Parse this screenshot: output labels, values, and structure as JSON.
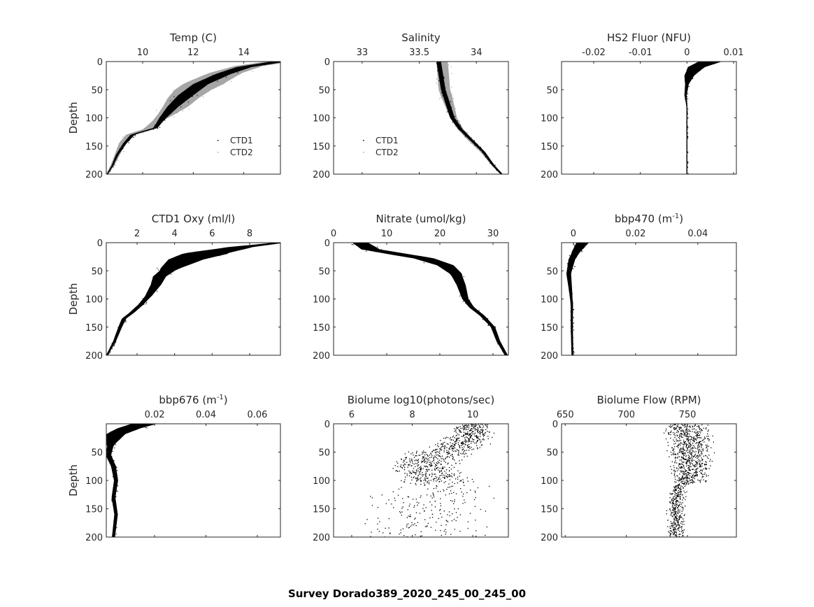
{
  "suptitle": "Survey Dorado389_2020_245_00_245_00",
  "colors": {
    "ctd1": "#000000",
    "ctd2": "#a6a6a6",
    "axis": "#262626"
  },
  "chart_data": [
    {
      "type": "line",
      "title": {
        "text": "Temp (C)"
      },
      "ylabel": "Depth",
      "xlim": [
        8.56,
        15.45
      ],
      "ylim": [
        0,
        200
      ],
      "xticks": [
        10,
        12,
        14
      ],
      "yticks": [
        0,
        50,
        100,
        150,
        200
      ],
      "legend": {
        "placement": "bottom-right",
        "entries": [
          "CTD1",
          "CTD2"
        ]
      },
      "series": [
        {
          "name": "CTD2",
          "color": "#a6a6a6",
          "points": [
            [
              15.4,
              0
            ],
            [
              14.2,
              8
            ],
            [
              13.3,
              20
            ],
            [
              12.6,
              35
            ],
            [
              12.0,
              50
            ],
            [
              11.6,
              65
            ],
            [
              11.3,
              80
            ],
            [
              10.9,
              95
            ],
            [
              10.6,
              105
            ],
            [
              10.2,
              120
            ],
            [
              9.5,
              130
            ],
            [
              9.2,
              145
            ],
            [
              9.0,
              165
            ],
            [
              8.8,
              185
            ],
            [
              8.6,
              200
            ]
          ],
          "spread": [
            [
              0,
              0.5
            ],
            [
              40,
              0.8
            ],
            [
              80,
              0.5
            ],
            [
              105,
              0.2
            ],
            [
              200,
              0.05
            ]
          ]
        },
        {
          "name": "CTD1",
          "color": "#000000",
          "points": [
            [
              15.4,
              0
            ],
            [
              14.0,
              10
            ],
            [
              13.2,
              22
            ],
            [
              12.3,
              40
            ],
            [
              11.7,
              60
            ],
            [
              11.2,
              80
            ],
            [
              10.8,
              100
            ],
            [
              10.5,
              118
            ],
            [
              9.6,
              130
            ],
            [
              9.3,
              145
            ],
            [
              9.0,
              165
            ],
            [
              8.8,
              185
            ],
            [
              8.6,
              200
            ]
          ],
          "spread": [
            [
              0,
              0.3
            ],
            [
              60,
              0.3
            ],
            [
              110,
              0.1
            ],
            [
              200,
              0.02
            ]
          ]
        }
      ]
    },
    {
      "type": "line",
      "title": {
        "text": "Salinity"
      },
      "ylabel": "",
      "xlim": [
        32.75,
        34.28
      ],
      "ylim": [
        0,
        200
      ],
      "xticks": [
        33,
        33.5,
        34
      ],
      "xticklabels": [
        "33",
        "33.5",
        "34"
      ],
      "yticks": [
        0,
        50,
        100,
        150,
        200
      ],
      "legend": {
        "placement": "bottom-left",
        "entries": [
          "CTD1",
          "CTD2"
        ]
      },
      "series": [
        {
          "name": "CTD2",
          "color": "#a6a6a6",
          "points": [
            [
              33.7,
              0
            ],
            [
              33.71,
              25
            ],
            [
              33.72,
              50
            ],
            [
              33.76,
              75
            ],
            [
              33.8,
              100
            ],
            [
              33.86,
              120
            ],
            [
              33.95,
              140
            ],
            [
              34.05,
              160
            ],
            [
              34.15,
              185
            ],
            [
              34.22,
              200
            ]
          ],
          "spread": [
            [
              0,
              0.05
            ],
            [
              60,
              0.05
            ],
            [
              100,
              0.03
            ],
            [
              200,
              0.01
            ]
          ]
        },
        {
          "name": "CTD1",
          "color": "#000000",
          "points": [
            [
              33.67,
              0
            ],
            [
              33.69,
              25
            ],
            [
              33.71,
              50
            ],
            [
              33.75,
              75
            ],
            [
              33.79,
              100
            ],
            [
              33.86,
              120
            ],
            [
              33.96,
              140
            ],
            [
              34.06,
              160
            ],
            [
              34.15,
              185
            ],
            [
              34.22,
              200
            ]
          ],
          "spread": [
            [
              0,
              0.02
            ],
            [
              100,
              0.02
            ],
            [
              200,
              0.01
            ]
          ]
        }
      ]
    },
    {
      "type": "line",
      "title": {
        "text": "HS2 Fluor (NFU)"
      },
      "ylabel": "",
      "xlim": [
        -0.0269,
        0.0106
      ],
      "ylim": [
        0,
        200
      ],
      "xticks": [
        -0.02,
        -0.01,
        0,
        0.01
      ],
      "xticklabels": [
        "-0.02",
        "-0.01",
        "0",
        "0.01"
      ],
      "yticks": [
        50,
        100,
        150,
        200
      ],
      "series": [
        {
          "name": "CTD1",
          "color": "#000000",
          "points": [
            [
              0.005,
              0
            ],
            [
              0.002,
              10
            ],
            [
              0.0005,
              25
            ],
            [
              0,
              40
            ],
            [
              -0.0003,
              60
            ],
            [
              0,
              80
            ],
            [
              0,
              200
            ]
          ],
          "spread": [
            [
              0,
              0.0025
            ],
            [
              15,
              0.0015
            ],
            [
              40,
              0.0004
            ],
            [
              80,
              0.0001
            ],
            [
              200,
              0.0001
            ]
          ]
        }
      ]
    },
    {
      "type": "line",
      "title": {
        "text": "CTD1 Oxy (ml/l)"
      },
      "ylabel": "Depth",
      "xlim": [
        0.36,
        9.64
      ],
      "ylim": [
        0,
        200
      ],
      "xticks": [
        2,
        4,
        6,
        8
      ],
      "yticks": [
        0,
        50,
        100,
        150,
        200
      ],
      "series": [
        {
          "name": "CTD1",
          "color": "#000000",
          "points": [
            [
              9.6,
              0
            ],
            [
              7.5,
              8
            ],
            [
              5.8,
              18
            ],
            [
              4.6,
              30
            ],
            [
              3.8,
              45
            ],
            [
              3.2,
              60
            ],
            [
              3.0,
              75
            ],
            [
              2.6,
              95
            ],
            [
              2.2,
              110
            ],
            [
              1.7,
              125
            ],
            [
              1.3,
              135
            ],
            [
              1.1,
              150
            ],
            [
              0.8,
              175
            ],
            [
              0.4,
              200
            ]
          ],
          "spread": [
            [
              0,
              0.3
            ],
            [
              20,
              1.2
            ],
            [
              50,
              0.4
            ],
            [
              100,
              0.15
            ],
            [
              200,
              0.05
            ]
          ]
        }
      ]
    },
    {
      "type": "line",
      "title": {
        "text": "Nitrate (umol/kg)"
      },
      "ylabel": "",
      "xlim": [
        0,
        32.9
      ],
      "ylim": [
        0,
        200
      ],
      "xticks": [
        0,
        10,
        20,
        30
      ],
      "yticks": [
        0,
        50,
        100,
        150,
        200
      ],
      "series": [
        {
          "name": "CTD1",
          "color": "#000000",
          "points": [
            [
              5,
              0
            ],
            [
              7,
              12
            ],
            [
              12,
              20
            ],
            [
              17,
              28
            ],
            [
              21,
              40
            ],
            [
              23,
              55
            ],
            [
              24,
              75
            ],
            [
              24.8,
              100
            ],
            [
              26,
              115
            ],
            [
              28,
              130
            ],
            [
              30,
              150
            ],
            [
              31,
              175
            ],
            [
              32.5,
              200
            ]
          ],
          "spread": [
            [
              0,
              1.5
            ],
            [
              25,
              2
            ],
            [
              60,
              1
            ],
            [
              110,
              0.5
            ],
            [
              200,
              0.3
            ]
          ]
        }
      ]
    },
    {
      "type": "line",
      "title": {
        "text": "bbp470 (m",
        "sup": "-1",
        "after": ")"
      },
      "ylabel": "",
      "xlim": [
        -0.0038,
        0.0524
      ],
      "ylim": [
        0,
        200
      ],
      "xticks": [
        0,
        0.02,
        0.04
      ],
      "xticklabels": [
        "0",
        "0.02",
        "0.04"
      ],
      "yticks": [
        50,
        100,
        150,
        200
      ],
      "series": [
        {
          "name": "CTD1",
          "color": "#000000",
          "points": [
            [
              0.003,
              0
            ],
            [
              0.001,
              15
            ],
            [
              -0.0005,
              30
            ],
            [
              -0.0015,
              55
            ],
            [
              -0.001,
              80
            ],
            [
              -0.0005,
              110
            ],
            [
              -0.0005,
              150
            ],
            [
              -0.0003,
              200
            ]
          ],
          "spread": [
            [
              0,
              0.002
            ],
            [
              20,
              0.0012
            ],
            [
              50,
              0.0008
            ],
            [
              100,
              0.0004
            ],
            [
              200,
              0.0003
            ]
          ]
        }
      ]
    },
    {
      "type": "line",
      "title": {
        "text": "bbp676 (m",
        "sup": "-1",
        "after": ")"
      },
      "ylabel": "Depth",
      "xlim": [
        0.0012,
        0.069
      ],
      "ylim": [
        0,
        200
      ],
      "xticks": [
        0.02,
        0.04,
        0.06
      ],
      "xticklabels": [
        "0.02",
        "0.04",
        "0.06"
      ],
      "yticks": [
        50,
        100,
        150,
        200
      ],
      "series": [
        {
          "name": "CTD1",
          "color": "#000000",
          "points": [
            [
              0.016,
              0
            ],
            [
              0.01,
              8
            ],
            [
              0.005,
              18
            ],
            [
              0.003,
              35
            ],
            [
              0.002,
              55
            ],
            [
              0.004,
              75
            ],
            [
              0.005,
              100
            ],
            [
              0.004,
              130
            ],
            [
              0.005,
              160
            ],
            [
              0.004,
              200
            ]
          ],
          "spread": [
            [
              0,
              0.005
            ],
            [
              15,
              0.004
            ],
            [
              40,
              0.0012
            ],
            [
              100,
              0.0008
            ],
            [
              200,
              0.0006
            ]
          ]
        }
      ]
    },
    {
      "type": "scatter",
      "title": {
        "text": "Biolume log10(photons/sec)"
      },
      "ylabel": "",
      "xlim": [
        5.4,
        11.18
      ],
      "ylim": [
        0,
        200
      ],
      "xticks": [
        6,
        8,
        10
      ],
      "yticks": [
        0,
        50,
        100,
        150,
        200
      ],
      "series": [
        {
          "name": "CTD1",
          "color": "#000000",
          "points": [
            [
              10.0,
              5
            ],
            [
              10.0,
              20
            ],
            [
              9.6,
              35
            ],
            [
              8.9,
              50
            ],
            [
              8.4,
              65
            ],
            [
              8.5,
              80
            ],
            [
              8.8,
              95
            ],
            [
              8.5,
              130
            ],
            [
              8.5,
              170
            ],
            [
              8.5,
              200
            ]
          ],
          "spread": [
            [
              0,
              0.6
            ],
            [
              30,
              1.0
            ],
            [
              60,
              1.3
            ],
            [
              100,
              1.3
            ],
            [
              110,
              2.4
            ],
            [
              200,
              2.4
            ]
          ],
          "density": [
            [
              0,
              1
            ],
            [
              100,
              1
            ],
            [
              105,
              0.12
            ],
            [
              200,
              0.12
            ]
          ]
        }
      ]
    },
    {
      "type": "scatter",
      "title": {
        "text": "Biolume Flow (RPM)"
      },
      "ylabel": "",
      "xlim": [
        647,
        790
      ],
      "ylim": [
        0,
        200
      ],
      "xticks": [
        650,
        700,
        750
      ],
      "yticks": [
        0,
        50,
        100,
        150,
        200
      ],
      "series": [
        {
          "name": "CTD1",
          "color": "#000000",
          "points": [
            [
              750,
              0
            ],
            [
              752,
              30
            ],
            [
              752,
              60
            ],
            [
              752,
              100
            ],
            [
              742,
              110
            ],
            [
              740,
              150
            ],
            [
              740,
              200
            ]
          ],
          "spread": [
            [
              0,
              22
            ],
            [
              50,
              20
            ],
            [
              100,
              18
            ],
            [
              105,
              8
            ],
            [
              200,
              8
            ]
          ],
          "density": [
            [
              0,
              1
            ],
            [
              100,
              1
            ],
            [
              105,
              0.5
            ],
            [
              200,
              0.5
            ]
          ]
        }
      ]
    }
  ]
}
